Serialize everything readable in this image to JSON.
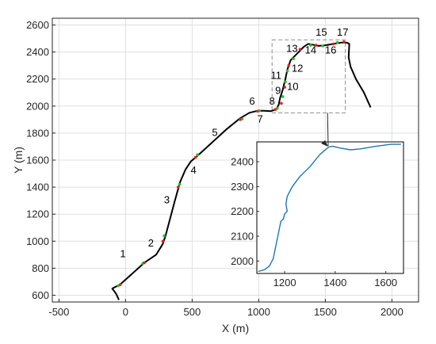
{
  "chart_data": [
    {
      "type": "line",
      "title": "",
      "xlabel": "X (m)",
      "ylabel": "Y (m)",
      "xlim": [
        -550,
        2200
      ],
      "ylim": [
        550,
        2650
      ],
      "xticks": [
        -500,
        0,
        500,
        1000,
        1500,
        2000
      ],
      "yticks": [
        600,
        800,
        1000,
        1200,
        1400,
        1600,
        1800,
        2000,
        2200,
        2400,
        2600
      ],
      "grid": true,
      "line_color": "#000000",
      "series": [
        {
          "x": [
            -50,
            -70,
            -100,
            -40,
            50,
            140,
            230,
            280,
            300,
            330,
            370,
            410,
            450,
            490,
            560,
            660,
            760,
            860,
            930,
            990,
            1040,
            1090,
            1130,
            1150,
            1160,
            1180,
            1200,
            1215,
            1225,
            1240,
            1290,
            1340,
            1370,
            1400,
            1450,
            1500,
            1560,
            1620,
            1660,
            1680,
            1675,
            1690,
            1730,
            1790,
            1840
          ],
          "y": [
            565,
            610,
            650,
            680,
            760,
            840,
            900,
            980,
            1040,
            1150,
            1300,
            1440,
            1530,
            1590,
            1650,
            1740,
            1830,
            1910,
            1950,
            1965,
            1965,
            1962,
            1975,
            2010,
            2060,
            2120,
            2200,
            2270,
            2300,
            2340,
            2390,
            2440,
            2460,
            2455,
            2445,
            2450,
            2460,
            2470,
            2470,
            2460,
            2360,
            2290,
            2200,
            2100,
            1990
          ]
        }
      ],
      "markers": {
        "green": [
          [
            -55,
            670
          ],
          [
            130,
            835
          ],
          [
            290,
            1040
          ],
          [
            405,
            1420
          ],
          [
            540,
            1640
          ],
          [
            875,
            1905
          ],
          [
            1005,
            1965
          ],
          [
            1140,
            1985
          ],
          [
            1180,
            2070
          ],
          [
            1200,
            2180
          ],
          [
            1215,
            2260
          ],
          [
            1260,
            2350
          ],
          [
            1390,
            2450
          ],
          [
            1480,
            2445
          ],
          [
            1590,
            2470
          ]
        ],
        "red": [
          [
            -40,
            678
          ],
          [
            140,
            840
          ],
          [
            280,
            1000
          ],
          [
            395,
            1400
          ],
          [
            525,
            1620
          ],
          [
            860,
            1900
          ],
          [
            990,
            1962
          ],
          [
            1125,
            1975
          ],
          [
            1170,
            2020
          ],
          [
            1195,
            2140
          ],
          [
            1225,
            2300
          ],
          [
            1310,
            2420
          ],
          [
            1430,
            2450
          ],
          [
            1560,
            2460
          ],
          [
            1640,
            2475
          ]
        ]
      },
      "segment_labels": [
        {
          "label": "1",
          "x": -20,
          "y": 880
        },
        {
          "label": "2",
          "x": 190,
          "y": 960
        },
        {
          "label": "3",
          "x": 310,
          "y": 1280
        },
        {
          "label": "4",
          "x": 510,
          "y": 1500
        },
        {
          "label": "5",
          "x": 670,
          "y": 1780
        },
        {
          "label": "6",
          "x": 950,
          "y": 2010
        },
        {
          "label": "7",
          "x": 1010,
          "y": 1880
        },
        {
          "label": "8",
          "x": 1100,
          "y": 2010
        },
        {
          "label": "9",
          "x": 1145,
          "y": 2090
        },
        {
          "label": "10",
          "x": 1255,
          "y": 2120
        },
        {
          "label": "11",
          "x": 1130,
          "y": 2200
        },
        {
          "label": "12",
          "x": 1290,
          "y": 2255
        },
        {
          "label": "13",
          "x": 1250,
          "y": 2400
        },
        {
          "label": "14",
          "x": 1390,
          "y": 2390
        },
        {
          "label": "15",
          "x": 1470,
          "y": 2520
        },
        {
          "label": "16",
          "x": 1540,
          "y": 2390
        },
        {
          "label": "17",
          "x": 1630,
          "y": 2520
        }
      ],
      "zoom_box": {
        "x": [
          1100,
          1650
        ],
        "y": [
          1950,
          2490
        ]
      }
    },
    {
      "type": "line",
      "title": "",
      "xlim": [
        1090,
        1670
      ],
      "ylim": [
        1950,
        2480
      ],
      "xticks": [
        1200,
        1400,
        1600
      ],
      "yticks": [
        2000,
        2100,
        2200,
        2300,
        2400
      ],
      "line_color": "#1f77b4",
      "series": [
        {
          "x": [
            1095,
            1120,
            1140,
            1155,
            1165,
            1175,
            1185,
            1195,
            1200,
            1210,
            1205,
            1210,
            1220,
            1225,
            1230,
            1260,
            1300,
            1340,
            1375,
            1390,
            1420,
            1460,
            1500,
            1560,
            1620,
            1660
          ],
          "y": [
            1958,
            1965,
            1980,
            2010,
            2060,
            2110,
            2160,
            2170,
            2190,
            2200,
            2230,
            2260,
            2280,
            2290,
            2300,
            2340,
            2380,
            2430,
            2460,
            2462,
            2455,
            2448,
            2452,
            2462,
            2470,
            2470
          ]
        }
      ]
    }
  ]
}
